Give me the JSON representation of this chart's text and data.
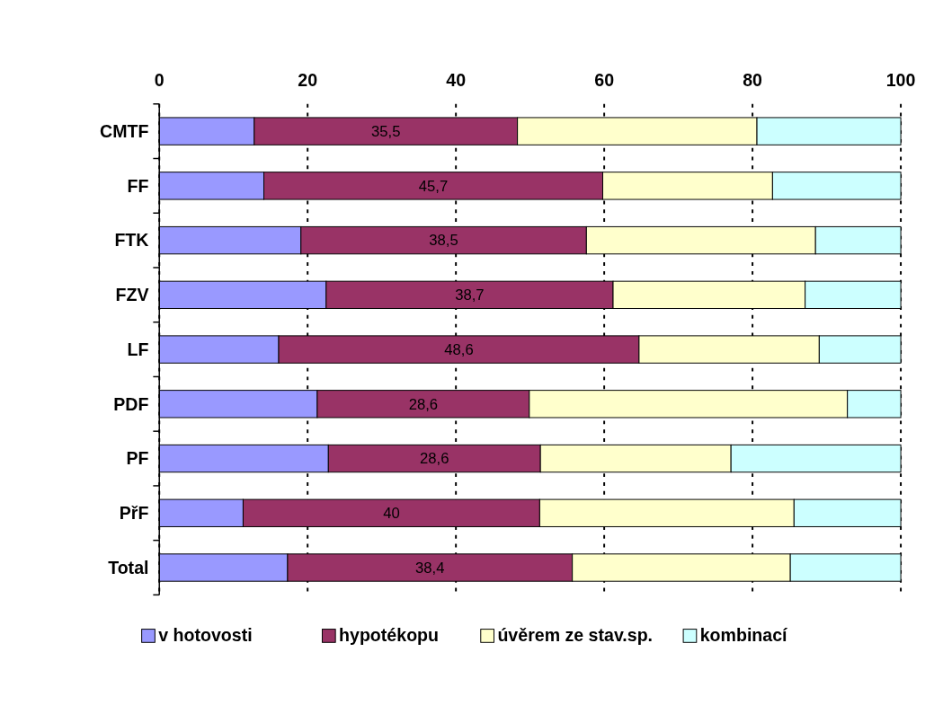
{
  "chart_data": {
    "type": "bar",
    "orientation": "horizontal",
    "stacked": true,
    "categories": [
      "CMTF",
      "FF",
      "FTK",
      "FZV",
      "LF",
      "PDF",
      "PF",
      "PřF",
      "Total"
    ],
    "series": [
      {
        "name": "v hotovosti",
        "color": "#9999ff",
        "values": [
          12.8,
          14.1,
          19.1,
          22.5,
          16.1,
          21.3,
          22.8,
          11.3,
          17.3
        ]
      },
      {
        "name": "hypotékopu",
        "color": "#993366",
        "values": [
          35.5,
          45.7,
          38.5,
          38.7,
          48.6,
          28.6,
          28.6,
          40,
          38.4
        ],
        "value_labels": [
          "35,5",
          "45,7",
          "38,5",
          "38,7",
          "48,6",
          "28,6",
          "28,6",
          "40",
          "38,4"
        ]
      },
      {
        "name": "úvěrem ze stav.sp.",
        "color": "#ffffcc",
        "values": [
          32.3,
          22.9,
          30.9,
          25.9,
          24.3,
          42.9,
          25.7,
          34.3,
          29.4
        ]
      },
      {
        "name": "kombinací",
        "color": "#ccffff",
        "values": [
          19.4,
          17.3,
          11.5,
          12.9,
          11,
          7.2,
          22.9,
          14.4,
          14.9
        ]
      }
    ],
    "xlim": [
      0,
      100
    ],
    "xticks": [
      0,
      20,
      40,
      60,
      80,
      100
    ],
    "grid": "x",
    "legend": "bottom"
  }
}
